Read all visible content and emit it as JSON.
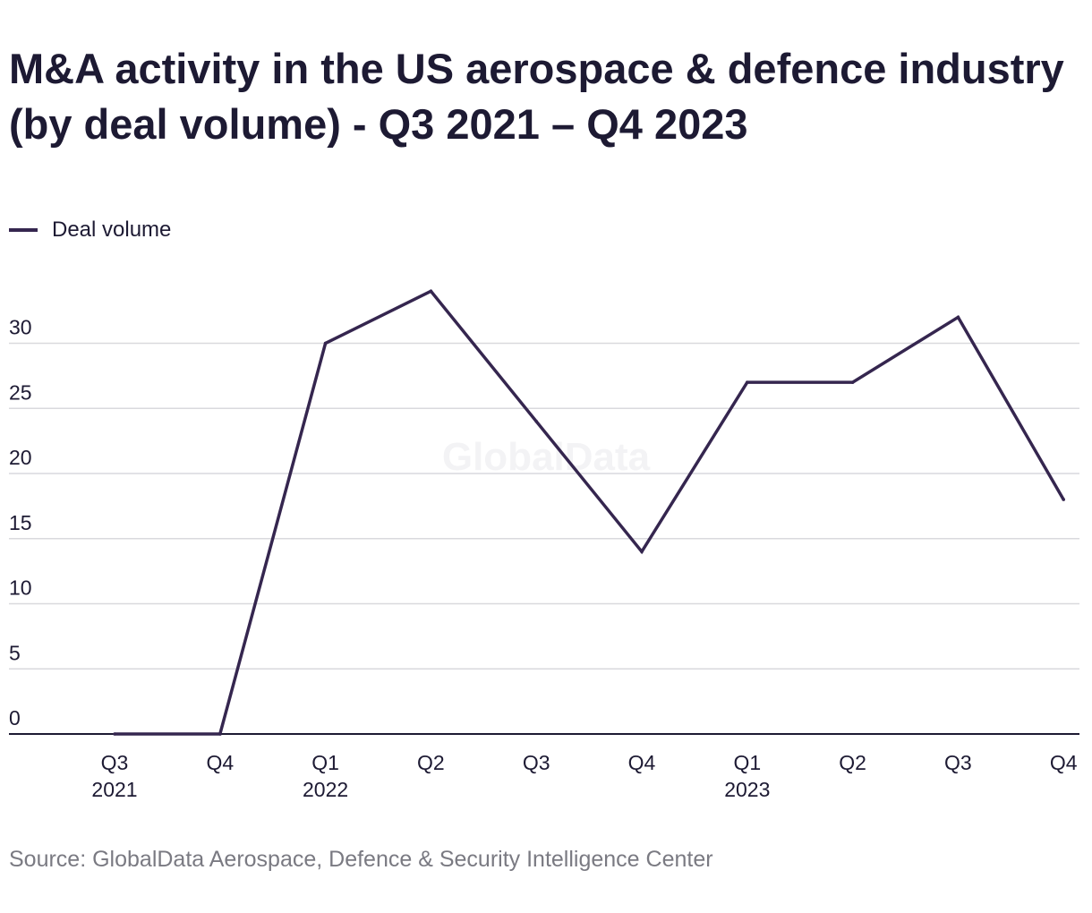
{
  "chart_data": {
    "type": "line",
    "title": "M&A activity in the US aerospace & defence industry (by deal volume) - Q3 2021 – Q4 2023",
    "xlabel": "",
    "ylabel": "",
    "x_ticks": [
      {
        "line1": "Q3",
        "line2": "2021"
      },
      {
        "line1": "Q4",
        "line2": ""
      },
      {
        "line1": "Q1",
        "line2": "2022"
      },
      {
        "line1": "Q2",
        "line2": ""
      },
      {
        "line1": "Q3",
        "line2": ""
      },
      {
        "line1": "Q4",
        "line2": ""
      },
      {
        "line1": "Q1",
        "line2": "2023"
      },
      {
        "line1": "Q2",
        "line2": ""
      },
      {
        "line1": "Q3",
        "line2": ""
      },
      {
        "line1": "Q4",
        "line2": ""
      }
    ],
    "categories": [
      "Q3 2021",
      "Q4 2021",
      "Q1 2022",
      "Q2 2022",
      "Q3 2022",
      "Q4 2022",
      "Q1 2023",
      "Q2 2023",
      "Q3 2023",
      "Q4 2023"
    ],
    "series": [
      {
        "name": "Deal volume",
        "color": "#35264f",
        "values": [
          0,
          0,
          30,
          34,
          24,
          14,
          27,
          27,
          32,
          18
        ]
      }
    ],
    "y_ticks": [
      0,
      5,
      10,
      15,
      20,
      25,
      30
    ],
    "ylim": [
      0,
      35
    ],
    "grid": true,
    "legend_position": "top-left"
  },
  "watermark": "GlobalData",
  "source": "Source: GlobalData Aerospace, Defence & Security Intelligence Center"
}
